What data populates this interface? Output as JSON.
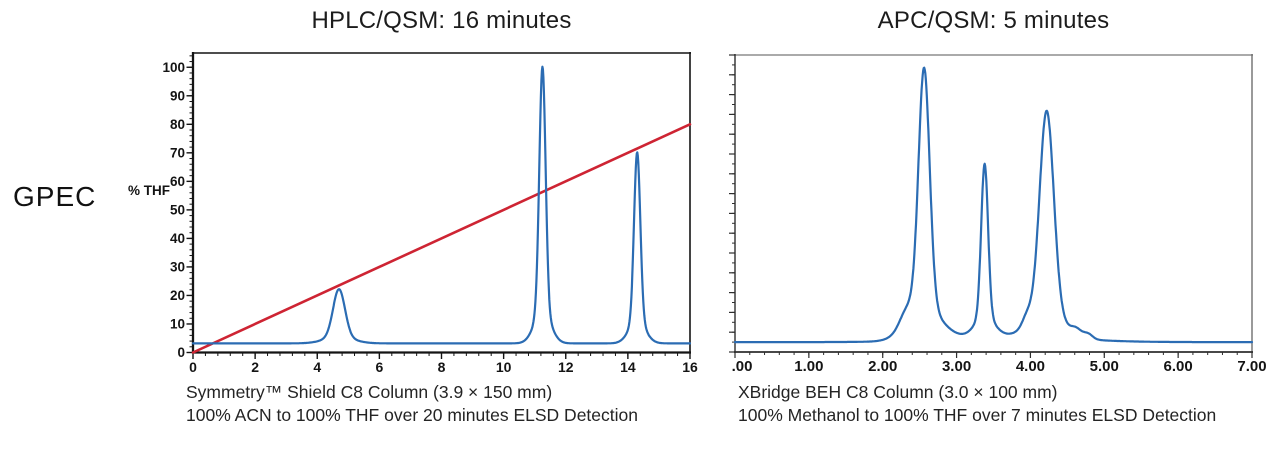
{
  "row_label": "GPEC",
  "colors": {
    "trace_blue": "#2b6cb3",
    "gradient_red": "#ce2433",
    "axis_dark": "#141414",
    "frame_gray": "#8e8e8e",
    "background": "#ffffff"
  },
  "charts": [
    {
      "title": "HPLC/QSM: 16 minutes",
      "ylabel": "% THF",
      "caption_line1": "Symmetry™ Shield C8 Column (3.9 × 150 mm)",
      "caption_line2": "100% ACN to 100% THF over 20 minutes ELSD Detection"
    },
    {
      "title": "APC/QSM: 5 minutes",
      "caption_line1": "XBridge BEH C8 Column (3.0 × 100 mm)",
      "caption_line2": "100% Methanol to 100% THF over 7 minutes ELSD Detection"
    }
  ],
  "chart_data": [
    {
      "type": "line",
      "title": "HPLC/QSM: 16 minutes",
      "ylabel": "% THF",
      "xlim": [
        0,
        16
      ],
      "ylim": [
        0,
        105
      ],
      "grid": false,
      "legend": "none",
      "x_minor_step": 0.4,
      "x_ticks": [
        {
          "v": 0,
          "t": "0"
        },
        {
          "v": 2,
          "t": "2"
        },
        {
          "v": 4,
          "t": "4"
        },
        {
          "v": 6,
          "t": "6"
        },
        {
          "v": 8,
          "t": "8"
        },
        {
          "v": 10,
          "t": "10"
        },
        {
          "v": 12,
          "t": "12"
        },
        {
          "v": 14,
          "t": "14"
        },
        {
          "v": 16,
          "t": "16"
        }
      ],
      "y_minor_step": 2,
      "y_major_step": 10,
      "y_ticks": [
        {
          "v": 0,
          "t": "0"
        },
        {
          "v": 10,
          "t": "10"
        },
        {
          "v": 20,
          "t": "20"
        },
        {
          "v": 30,
          "t": "30"
        },
        {
          "v": 40,
          "t": "40"
        },
        {
          "v": 50,
          "t": "50"
        },
        {
          "v": 60,
          "t": "60"
        },
        {
          "v": 70,
          "t": "70"
        },
        {
          "v": 80,
          "t": "80"
        },
        {
          "v": 90,
          "t": "90"
        },
        {
          "v": 100,
          "t": "100"
        }
      ],
      "series": [
        {
          "name": "thf-gradient-line",
          "kind": "segments",
          "color": "#ce2433",
          "width": 2.6,
          "points": [
            [
              0,
              0
            ],
            [
              16,
              80
            ]
          ],
          "description": "%THF gradient line, 0% at 0 min to 80% at 16 min"
        },
        {
          "name": "elsd-trace",
          "kind": "chromatogram",
          "color": "#2b6cb3",
          "width": 2.2,
          "baseline": 3.2,
          "peaks": [
            {
              "center": 4.7,
              "height": 19,
              "width": 0.19,
              "flare": 2.4
            },
            {
              "center": 11.25,
              "height": 97,
              "width": 0.1,
              "flare": 2.6
            },
            {
              "center": 14.3,
              "height": 67,
              "width": 0.1,
              "flare": 2.6
            }
          ],
          "peak_retention_times_min": [
            4.7,
            11.25,
            14.3
          ],
          "peak_heights_pct": [
            22,
            100,
            70
          ]
        }
      ]
    },
    {
      "type": "line",
      "title": "APC/QSM: 5 minutes",
      "ylabel": "",
      "xlim": [
        0,
        7
      ],
      "ylim": [
        0,
        105
      ],
      "grid": false,
      "legend": "none",
      "x_minor_step": 0.2,
      "x_ticks": [
        {
          "v": 0,
          "t": ".00",
          "dx": 7
        },
        {
          "v": 1,
          "t": "1.00"
        },
        {
          "v": 2,
          "t": "2.00"
        },
        {
          "v": 3,
          "t": "3.00"
        },
        {
          "v": 4,
          "t": "4.00"
        },
        {
          "v": 5,
          "t": "5.00"
        },
        {
          "v": 6,
          "t": "6.00"
        },
        {
          "v": 7,
          "t": "7.00"
        }
      ],
      "y_minor_step": 3.5,
      "y_major_step": 7,
      "y_ticks": [],
      "series": [
        {
          "name": "elsd-trace",
          "kind": "chromatogram",
          "color": "#2b6cb3",
          "width": 2.2,
          "baseline": 3.5,
          "peaks": [
            {
              "center": 2.32,
              "height": 5,
              "width": 0.09,
              "flare": 1.5
            },
            {
              "center": 2.56,
              "height": 96,
              "width": 0.075,
              "flare": 3
            },
            {
              "center": 3.7,
              "height": 2.2,
              "width": 0.8,
              "flare": 1
            },
            {
              "center": 3.38,
              "height": 61,
              "width": 0.046,
              "flare": 2.8
            },
            {
              "center": 3.95,
              "height": 3.5,
              "width": 0.06,
              "flare": 1.5
            },
            {
              "center": 4.22,
              "height": 80,
              "width": 0.095,
              "flare": 2.2
            },
            {
              "center": 4.62,
              "height": 2.5,
              "width": 0.07,
              "flare": 1.5
            },
            {
              "center": 4.78,
              "height": 1.8,
              "width": 0.06,
              "flare": 1.5
            }
          ],
          "peak_retention_times_min": [
            2.56,
            3.38,
            4.22
          ],
          "peak_heights_pct": [
            100,
            65,
            85
          ]
        }
      ]
    }
  ]
}
